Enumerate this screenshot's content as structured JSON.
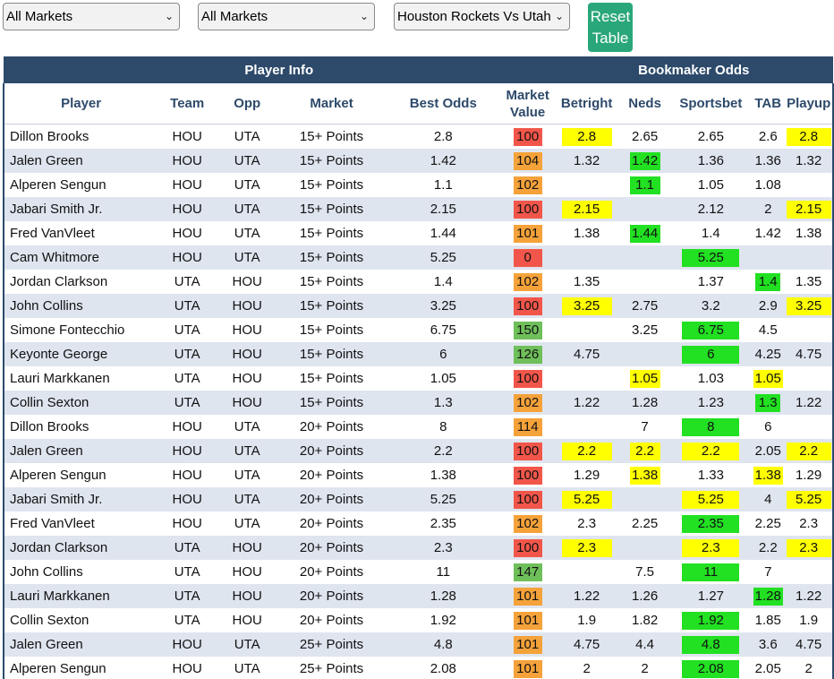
{
  "filters": {
    "market_select": "All Markets",
    "submarket_select": "All Markets",
    "game_select": "Houston Rockets Vs Utah",
    "reset_line1": "Reset",
    "reset_line2": "Table"
  },
  "table": {
    "group_headers": {
      "player_info": "Player Info",
      "bookmaker_odds": "Bookmaker Odds"
    },
    "columns": {
      "player": "Player",
      "team": "Team",
      "opp": "Opp",
      "market": "Market",
      "best_odds": "Best Odds",
      "market_value_1": "Market",
      "market_value_2": "Value",
      "betright": "Betright",
      "neds": "Neds",
      "sportsbet": "Sportsbet",
      "tab": "TAB",
      "playup": "Playup"
    },
    "colors": {
      "red": "#f2564a",
      "orange": "#f5a23a",
      "green": "#6fbf5a",
      "best_highlight_green": "#22e022",
      "tie_highlight_yellow": "#ffff00",
      "header_navy": "#2d4a6b"
    },
    "rows": [
      {
        "player": "Dillon Brooks",
        "team": "HOU",
        "opp": "UTA",
        "market": "15+ Points",
        "best": "2.8",
        "mv": "100",
        "mvc": "red",
        "betright": "2.8",
        "neds": "2.65",
        "sportsbet": "2.65",
        "tab": "2.6",
        "playup": "2.8",
        "hl": {
          "betright": "y",
          "playup": "y"
        }
      },
      {
        "player": "Jalen Green",
        "team": "HOU",
        "opp": "UTA",
        "market": "15+ Points",
        "best": "1.42",
        "mv": "104",
        "mvc": "orange",
        "betright": "1.32",
        "neds": "1.42",
        "sportsbet": "1.36",
        "tab": "1.36",
        "playup": "1.32",
        "hl": {
          "neds": "g"
        }
      },
      {
        "player": "Alperen Sengun",
        "team": "HOU",
        "opp": "UTA",
        "market": "15+ Points",
        "best": "1.1",
        "mv": "102",
        "mvc": "orange",
        "betright": "",
        "neds": "1.1",
        "sportsbet": "1.05",
        "tab": "1.08",
        "playup": "",
        "hl": {
          "neds": "g"
        }
      },
      {
        "player": "Jabari Smith Jr.",
        "team": "HOU",
        "opp": "UTA",
        "market": "15+ Points",
        "best": "2.15",
        "mv": "100",
        "mvc": "red",
        "betright": "2.15",
        "neds": "",
        "sportsbet": "2.12",
        "tab": "2",
        "playup": "2.15",
        "hl": {
          "betright": "y",
          "playup": "y"
        }
      },
      {
        "player": "Fred VanVleet",
        "team": "HOU",
        "opp": "UTA",
        "market": "15+ Points",
        "best": "1.44",
        "mv": "101",
        "mvc": "orange",
        "betright": "1.38",
        "neds": "1.44",
        "sportsbet": "1.4",
        "tab": "1.42",
        "playup": "1.38",
        "hl": {
          "neds": "g"
        }
      },
      {
        "player": "Cam Whitmore",
        "team": "HOU",
        "opp": "UTA",
        "market": "15+ Points",
        "best": "5.25",
        "mv": "0",
        "mvc": "red",
        "betright": "",
        "neds": "",
        "sportsbet": "5.25",
        "tab": "",
        "playup": "",
        "hl": {
          "sportsbet": "g"
        }
      },
      {
        "player": "Jordan Clarkson",
        "team": "UTA",
        "opp": "HOU",
        "market": "15+ Points",
        "best": "1.4",
        "mv": "102",
        "mvc": "orange",
        "betright": "1.35",
        "neds": "",
        "sportsbet": "1.37",
        "tab": "1.4",
        "playup": "1.35",
        "hl": {
          "tab": "g"
        }
      },
      {
        "player": "John Collins",
        "team": "UTA",
        "opp": "HOU",
        "market": "15+ Points",
        "best": "3.25",
        "mv": "100",
        "mvc": "red",
        "betright": "3.25",
        "neds": "2.75",
        "sportsbet": "3.2",
        "tab": "2.9",
        "playup": "3.25",
        "hl": {
          "betright": "y",
          "playup": "y"
        }
      },
      {
        "player": "Simone Fontecchio",
        "team": "UTA",
        "opp": "HOU",
        "market": "15+ Points",
        "best": "6.75",
        "mv": "150",
        "mvc": "green",
        "betright": "",
        "neds": "3.25",
        "sportsbet": "6.75",
        "tab": "4.5",
        "playup": "",
        "hl": {
          "sportsbet": "g"
        }
      },
      {
        "player": "Keyonte George",
        "team": "UTA",
        "opp": "HOU",
        "market": "15+ Points",
        "best": "6",
        "mv": "126",
        "mvc": "green",
        "betright": "4.75",
        "neds": "",
        "sportsbet": "6",
        "tab": "4.25",
        "playup": "4.75",
        "hl": {
          "sportsbet": "g"
        }
      },
      {
        "player": "Lauri Markkanen",
        "team": "UTA",
        "opp": "HOU",
        "market": "15+ Points",
        "best": "1.05",
        "mv": "100",
        "mvc": "red",
        "betright": "",
        "neds": "1.05",
        "sportsbet": "1.03",
        "tab": "1.05",
        "playup": "",
        "hl": {
          "neds": "y",
          "tab": "y"
        }
      },
      {
        "player": "Collin Sexton",
        "team": "UTA",
        "opp": "HOU",
        "market": "15+ Points",
        "best": "1.3",
        "mv": "102",
        "mvc": "orange",
        "betright": "1.22",
        "neds": "1.28",
        "sportsbet": "1.23",
        "tab": "1.3",
        "playup": "1.22",
        "hl": {
          "tab": "g"
        }
      },
      {
        "player": "Dillon Brooks",
        "team": "HOU",
        "opp": "UTA",
        "market": "20+ Points",
        "best": "8",
        "mv": "114",
        "mvc": "orange",
        "betright": "",
        "neds": "7",
        "sportsbet": "8",
        "tab": "6",
        "playup": "",
        "hl": {
          "sportsbet": "g"
        }
      },
      {
        "player": "Jalen Green",
        "team": "HOU",
        "opp": "UTA",
        "market": "20+ Points",
        "best": "2.2",
        "mv": "100",
        "mvc": "red",
        "betright": "2.2",
        "neds": "2.2",
        "sportsbet": "2.2",
        "tab": "2.05",
        "playup": "2.2",
        "hl": {
          "betright": "y",
          "neds": "y",
          "sportsbet": "y",
          "playup": "y"
        }
      },
      {
        "player": "Alperen Sengun",
        "team": "HOU",
        "opp": "UTA",
        "market": "20+ Points",
        "best": "1.38",
        "mv": "100",
        "mvc": "red",
        "betright": "1.29",
        "neds": "1.38",
        "sportsbet": "1.33",
        "tab": "1.38",
        "playup": "1.29",
        "hl": {
          "neds": "y",
          "tab": "y"
        }
      },
      {
        "player": "Jabari Smith Jr.",
        "team": "HOU",
        "opp": "UTA",
        "market": "20+ Points",
        "best": "5.25",
        "mv": "100",
        "mvc": "red",
        "betright": "5.25",
        "neds": "",
        "sportsbet": "5.25",
        "tab": "4",
        "playup": "5.25",
        "hl": {
          "betright": "y",
          "sportsbet": "y",
          "playup": "y"
        }
      },
      {
        "player": "Fred VanVleet",
        "team": "HOU",
        "opp": "UTA",
        "market": "20+ Points",
        "best": "2.35",
        "mv": "102",
        "mvc": "orange",
        "betright": "2.3",
        "neds": "2.25",
        "sportsbet": "2.35",
        "tab": "2.25",
        "playup": "2.3",
        "hl": {
          "sportsbet": "g"
        }
      },
      {
        "player": "Jordan Clarkson",
        "team": "UTA",
        "opp": "HOU",
        "market": "20+ Points",
        "best": "2.3",
        "mv": "100",
        "mvc": "red",
        "betright": "2.3",
        "neds": "",
        "sportsbet": "2.3",
        "tab": "2.2",
        "playup": "2.3",
        "hl": {
          "betright": "y",
          "sportsbet": "y",
          "playup": "y"
        }
      },
      {
        "player": "John Collins",
        "team": "UTA",
        "opp": "HOU",
        "market": "20+ Points",
        "best": "11",
        "mv": "147",
        "mvc": "green",
        "betright": "",
        "neds": "7.5",
        "sportsbet": "11",
        "tab": "7",
        "playup": "",
        "hl": {
          "sportsbet": "g"
        }
      },
      {
        "player": "Lauri Markkanen",
        "team": "UTA",
        "opp": "HOU",
        "market": "20+ Points",
        "best": "1.28",
        "mv": "101",
        "mvc": "orange",
        "betright": "1.22",
        "neds": "1.26",
        "sportsbet": "1.27",
        "tab": "1.28",
        "playup": "1.22",
        "hl": {
          "tab": "g"
        }
      },
      {
        "player": "Collin Sexton",
        "team": "UTA",
        "opp": "HOU",
        "market": "20+ Points",
        "best": "1.92",
        "mv": "101",
        "mvc": "orange",
        "betright": "1.9",
        "neds": "1.82",
        "sportsbet": "1.92",
        "tab": "1.85",
        "playup": "1.9",
        "hl": {
          "sportsbet": "g"
        }
      },
      {
        "player": "Jalen Green",
        "team": "HOU",
        "opp": "UTA",
        "market": "25+ Points",
        "best": "4.8",
        "mv": "101",
        "mvc": "orange",
        "betright": "4.75",
        "neds": "4.4",
        "sportsbet": "4.8",
        "tab": "3.6",
        "playup": "4.75",
        "hl": {
          "sportsbet": "g"
        }
      },
      {
        "player": "Alperen Sengun",
        "team": "HOU",
        "opp": "UTA",
        "market": "25+ Points",
        "best": "2.08",
        "mv": "101",
        "mvc": "orange",
        "betright": "2",
        "neds": "2",
        "sportsbet": "2.08",
        "tab": "2.05",
        "playup": "2",
        "hl": {
          "sportsbet": "g"
        }
      }
    ]
  }
}
